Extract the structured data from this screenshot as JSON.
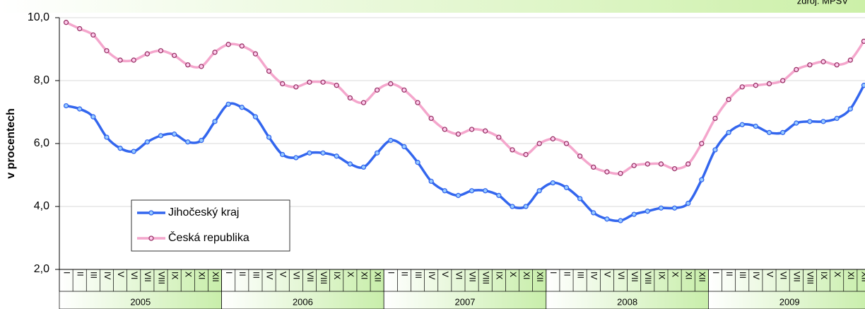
{
  "chart_data": {
    "type": "line",
    "source": "zdroj: MPSV",
    "ylabel": "v procentech",
    "categories": [
      "I",
      "II",
      "III",
      "IV",
      "V",
      "VI",
      "VII",
      "VIII",
      "IX",
      "X",
      "XI",
      "XII",
      "I",
      "II",
      "III",
      "IV",
      "V",
      "VI",
      "VII",
      "VIII",
      "IX",
      "X",
      "XI",
      "XII",
      "I",
      "II",
      "III",
      "IV",
      "V",
      "VI",
      "VII",
      "VIII",
      "IX",
      "X",
      "XI",
      "XII",
      "I",
      "II",
      "III",
      "IV",
      "V",
      "VI",
      "VII",
      "VIII",
      "IX",
      "X",
      "XI",
      "XII",
      "I",
      "II",
      "III",
      "IV",
      "V",
      "VI",
      "VII",
      "VIII",
      "IX",
      "X",
      "XI",
      "XII"
    ],
    "years": [
      "2005",
      "2006",
      "2007",
      "2008",
      "2009"
    ],
    "series": [
      {
        "name": "Jihočeský kraj",
        "color": "#3366ee",
        "marker_fill": "#99ccff",
        "values": [
          7.2,
          7.1,
          6.85,
          6.2,
          5.85,
          5.75,
          6.05,
          6.25,
          6.3,
          6.05,
          6.1,
          6.7,
          7.25,
          7.15,
          6.85,
          6.2,
          5.65,
          5.55,
          5.7,
          5.7,
          5.6,
          5.35,
          5.25,
          5.7,
          6.1,
          5.9,
          5.4,
          4.8,
          4.5,
          4.35,
          4.5,
          4.5,
          4.35,
          4.0,
          4.0,
          4.5,
          4.75,
          4.6,
          4.25,
          3.8,
          3.6,
          3.55,
          3.75,
          3.85,
          3.95,
          3.95,
          4.1,
          4.85,
          5.8,
          6.35,
          6.6,
          6.55,
          6.35,
          6.35,
          6.65,
          6.7,
          6.7,
          6.8,
          7.1,
          7.85
        ]
      },
      {
        "name": "Česká republika",
        "color": "#f4a6cc",
        "marker_fill": "#ffccee",
        "marker_stroke": "#993366",
        "values": [
          9.85,
          9.65,
          9.45,
          8.95,
          8.65,
          8.65,
          8.85,
          8.95,
          8.8,
          8.5,
          8.45,
          8.9,
          9.15,
          9.1,
          8.85,
          8.3,
          7.9,
          7.8,
          7.95,
          7.95,
          7.85,
          7.45,
          7.3,
          7.7,
          7.9,
          7.7,
          7.3,
          6.8,
          6.45,
          6.3,
          6.45,
          6.4,
          6.2,
          5.8,
          5.65,
          6.0,
          6.15,
          6.0,
          5.6,
          5.25,
          5.1,
          5.05,
          5.3,
          5.35,
          5.35,
          5.2,
          5.35,
          6.0,
          6.8,
          7.4,
          7.8,
          7.85,
          7.9,
          8.0,
          8.35,
          8.5,
          8.6,
          8.5,
          8.65,
          9.25
        ]
      }
    ],
    "ylim": [
      2,
      10
    ],
    "yticks": [
      {
        "value": 2,
        "label": "2,0"
      },
      {
        "value": 4,
        "label": "4,0"
      },
      {
        "value": 6,
        "label": "6,0"
      },
      {
        "value": 8,
        "label": "8,0"
      },
      {
        "value": 10,
        "label": "10,0"
      }
    ],
    "grid": true,
    "legend": "lower-left"
  }
}
